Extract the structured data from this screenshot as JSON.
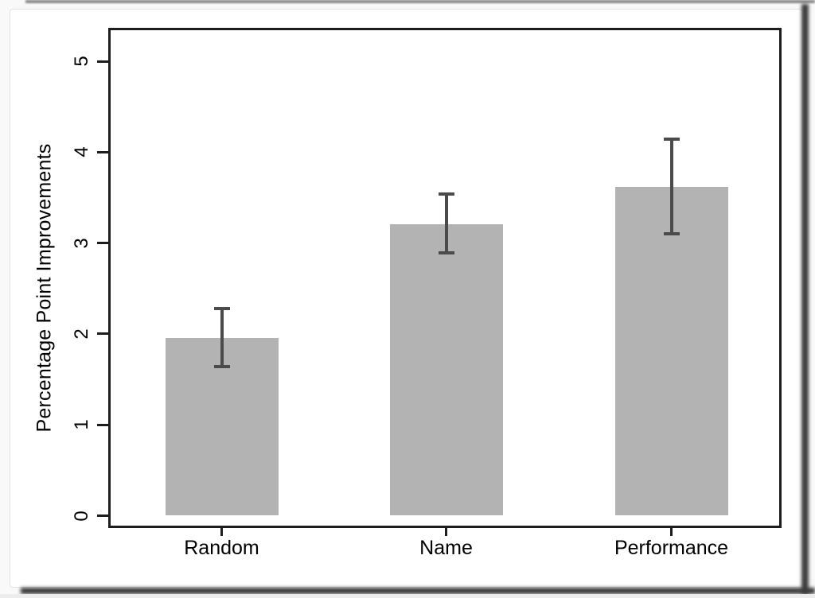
{
  "chart_data": {
    "type": "bar",
    "title": "",
    "ylabel": "Percentage Point Improvements",
    "xlabel": "",
    "categories": [
      "Random",
      "Name",
      "Performance"
    ],
    "values": [
      1.96,
      3.21,
      3.62
    ],
    "error_bars": {
      "low": [
        1.64,
        2.89,
        3.1
      ],
      "high": [
        2.28,
        3.54,
        4.14
      ]
    },
    "ylim": [
      0,
      5
    ],
    "yticks": [
      0,
      1,
      2,
      3,
      4,
      5
    ],
    "grid": false,
    "legend": "none",
    "colors": {
      "bar_fill": "#b3b3b3",
      "error_bar": "#4b4b4b",
      "axis": "#1d1d1d",
      "text": "#000000",
      "page_background": "#ffffff"
    }
  }
}
